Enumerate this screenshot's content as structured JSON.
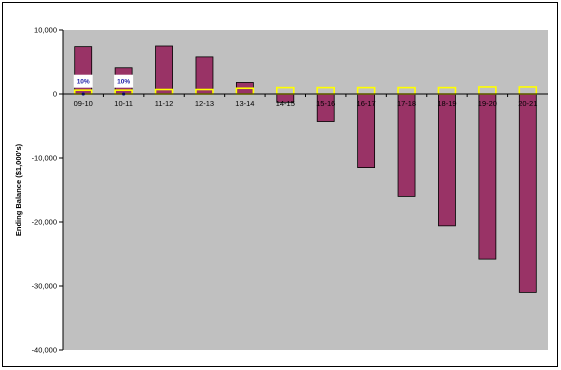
{
  "chart_data": {
    "type": "bar",
    "title": "",
    "xlabel": "",
    "ylabel": "Ending Balance ($1,000's)",
    "ylim": [
      -40000,
      10000
    ],
    "yticks": [
      10000,
      0,
      -10000,
      -20000,
      -30000,
      -40000
    ],
    "ytick_labels": [
      "10,000",
      "0",
      "-10,000",
      "-20,000",
      "-30,000",
      "-40,000"
    ],
    "categories": [
      "09-10",
      "10-11",
      "11-12",
      "12-13",
      "13-14",
      "14-15",
      "15-16",
      "16-17",
      "17-18",
      "18-19",
      "19-20",
      "20-21"
    ],
    "series": [
      {
        "name": "",
        "color": "#993366",
        "values": [
          7400,
          4100,
          7500,
          5800,
          1800,
          -1300,
          -4300,
          -11500,
          -16000,
          -20600,
          -25800,
          -31000
        ]
      },
      {
        "name": "",
        "color": "#ffff00",
        "fill": "#ffffff",
        "values": [
          600,
          600,
          700,
          700,
          900,
          1000,
          1000,
          1000,
          1000,
          1000,
          1100,
          1100
        ]
      }
    ],
    "annotations": [
      {
        "category": "09-10",
        "text": "10%"
      },
      {
        "category": "10-11",
        "text": "10%"
      }
    ],
    "plot_background": "#c0c0c0",
    "grid": false,
    "legend": "none"
  }
}
